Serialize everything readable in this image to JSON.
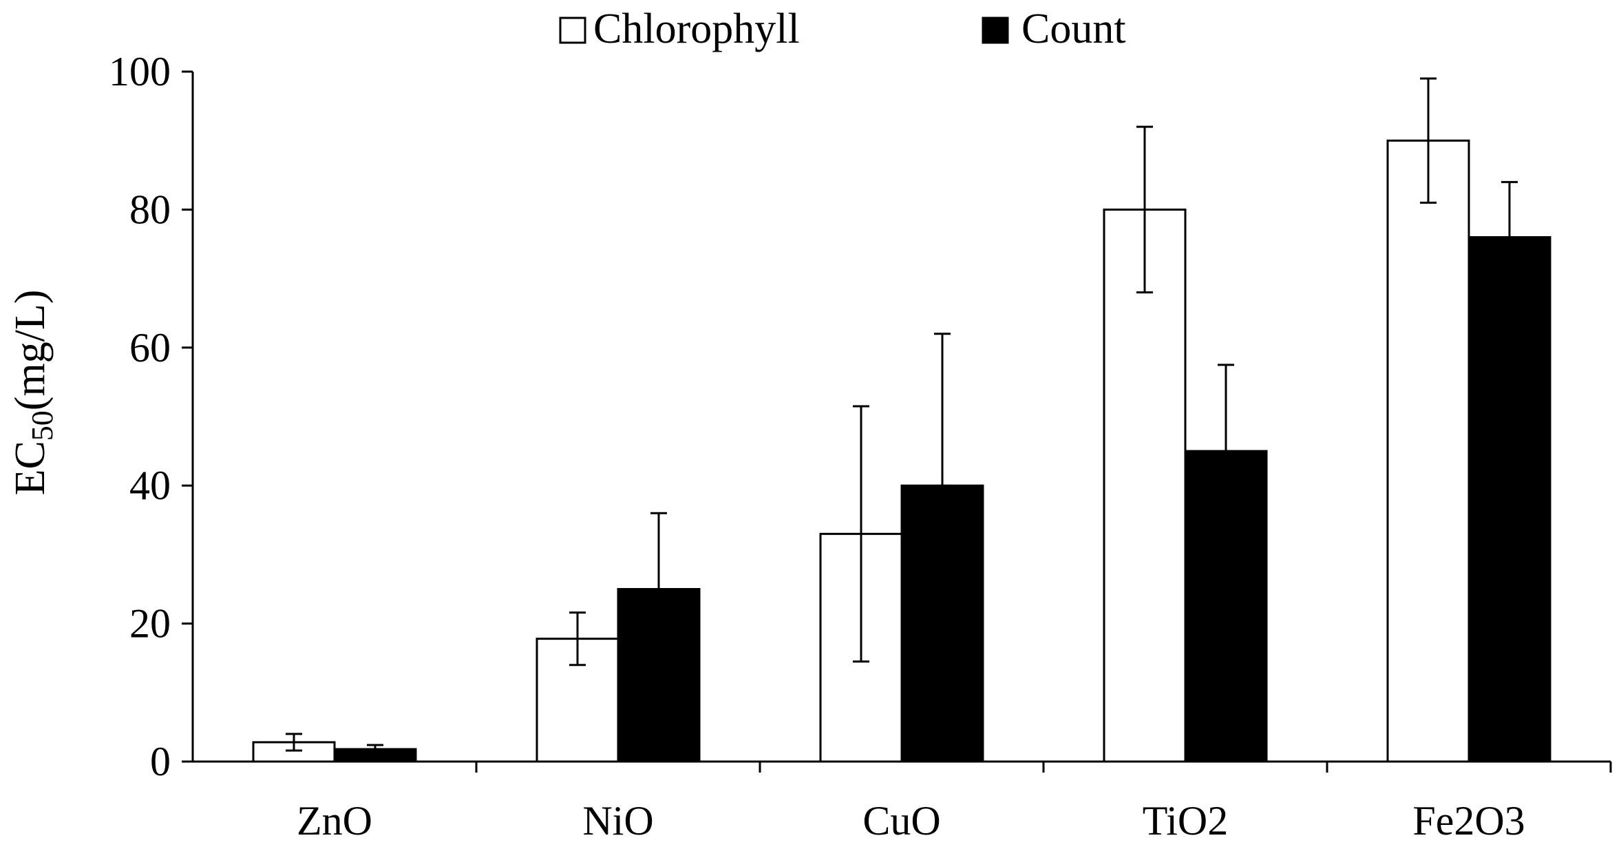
{
  "chart_data": {
    "type": "bar",
    "title": "",
    "xlabel": "",
    "ylabel": {
      "main": "EC",
      "subscript": "50",
      "unit": "(mg/L)"
    },
    "ylim": [
      0,
      100
    ],
    "yticks": [
      0,
      20,
      40,
      60,
      80,
      100
    ],
    "categories": [
      "ZnO",
      "NiO",
      "CuO",
      "TiO2",
      "Fe2O3"
    ],
    "series": [
      {
        "name": "Chlorophyll",
        "fill": "#ffffff",
        "stroke": "#000000",
        "values": [
          2.8,
          17.8,
          33,
          80,
          90
        ],
        "errors": [
          1.2,
          3.8,
          18.5,
          12,
          9
        ]
      },
      {
        "name": "Count",
        "fill": "#000000",
        "stroke": "#000000",
        "values": [
          1.8,
          25,
          40,
          45,
          76
        ],
        "errors": [
          0.6,
          11,
          22,
          12.5,
          8
        ]
      }
    ],
    "legend_position": "top-center",
    "grid": false
  }
}
